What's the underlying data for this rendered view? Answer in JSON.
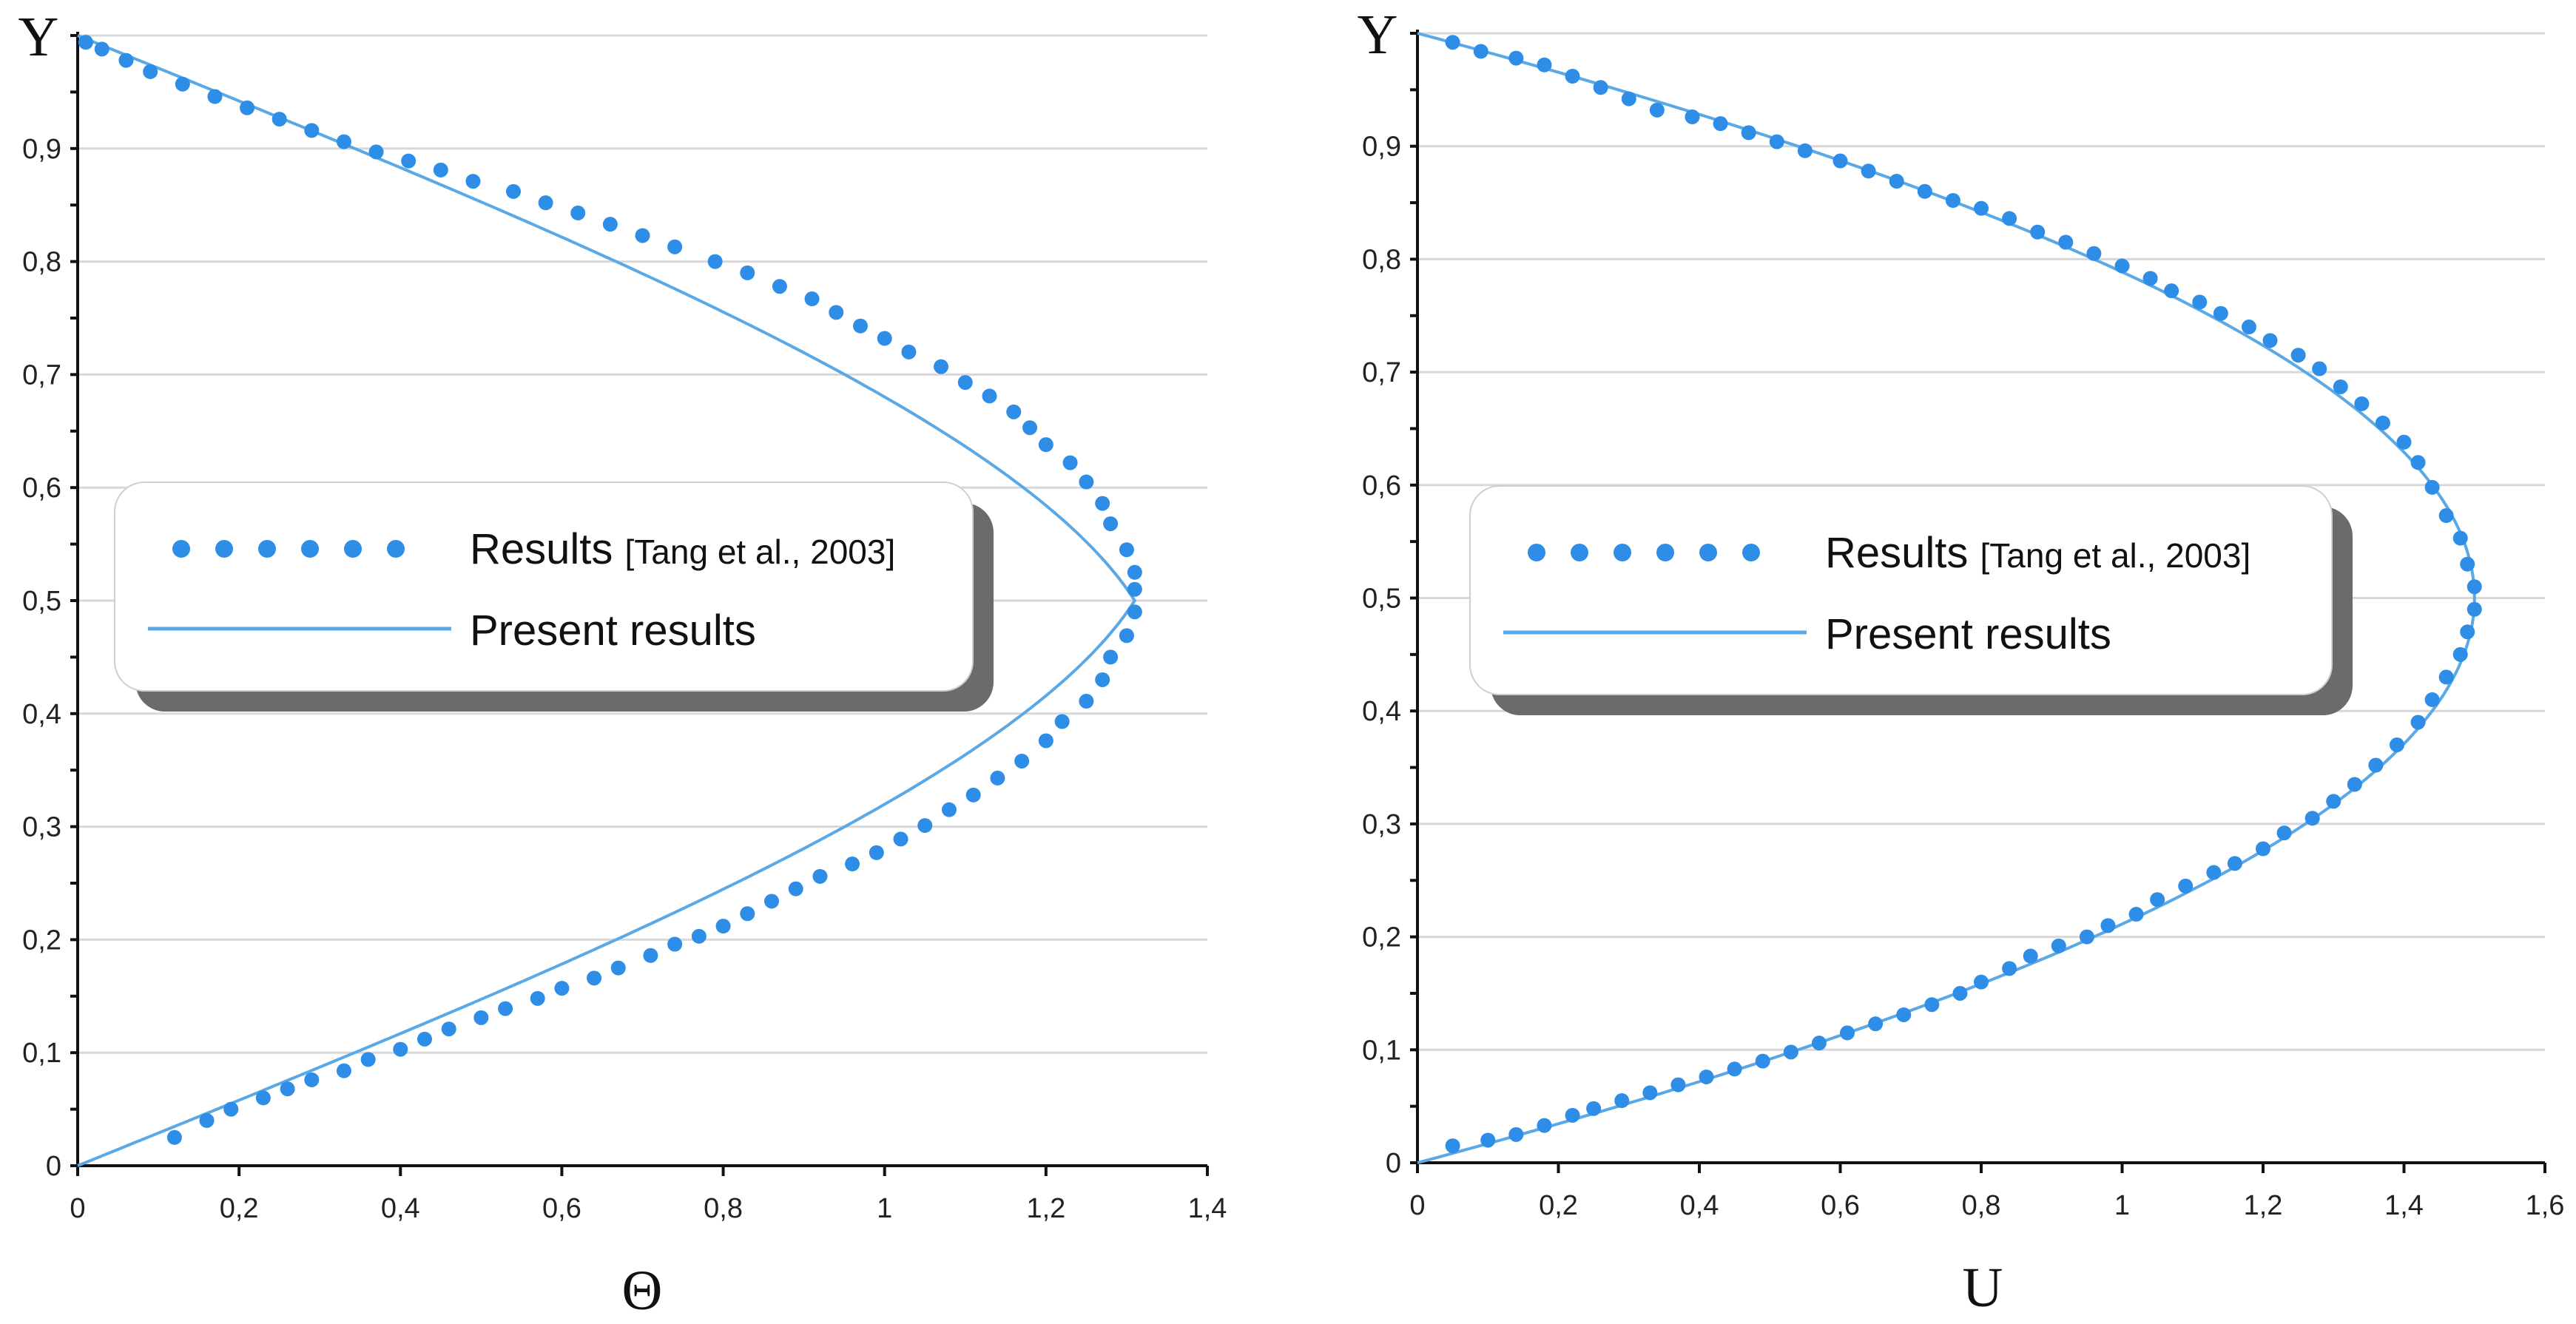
{
  "chart_data": [
    {
      "type": "line",
      "xlabel": "Θ",
      "ylabel": "Y",
      "xlim": [
        0,
        1.4
      ],
      "ylim": [
        0,
        1
      ],
      "x_ticks": [
        "0",
        "0,2",
        "0,4",
        "0,6",
        "0,8",
        "1",
        "1,2",
        "1,4"
      ],
      "y_ticks": [
        "0",
        "0,1",
        "0,2",
        "0,3",
        "0,4",
        "0,5",
        "0,6",
        "0,7",
        "0,8",
        "0,9"
      ],
      "grid": "horizontal",
      "legend_position": "middle-left",
      "line_color": "#5aa9e6",
      "marker_color": "#2e8de6",
      "peak_x": 1.31,
      "series": [
        {
          "name": "Results",
          "name_suffix": "[Tang et al., 2003]",
          "style": "dots",
          "points": [
            [
              0.12,
              0.025
            ],
            [
              0.16,
              0.04
            ],
            [
              0.19,
              0.05
            ],
            [
              0.23,
              0.06
            ],
            [
              0.26,
              0.068
            ],
            [
              0.29,
              0.076
            ],
            [
              0.33,
              0.084
            ],
            [
              0.36,
              0.094
            ],
            [
              0.4,
              0.103
            ],
            [
              0.43,
              0.112
            ],
            [
              0.46,
              0.121
            ],
            [
              0.5,
              0.131
            ],
            [
              0.53,
              0.139
            ],
            [
              0.57,
              0.148
            ],
            [
              0.6,
              0.157
            ],
            [
              0.64,
              0.166
            ],
            [
              0.67,
              0.175
            ],
            [
              0.71,
              0.186
            ],
            [
              0.74,
              0.196
            ],
            [
              0.77,
              0.203
            ],
            [
              0.8,
              0.212
            ],
            [
              0.83,
              0.223
            ],
            [
              0.86,
              0.234
            ],
            [
              0.89,
              0.245
            ],
            [
              0.92,
              0.256
            ],
            [
              0.96,
              0.267
            ],
            [
              0.99,
              0.277
            ],
            [
              1.02,
              0.289
            ],
            [
              1.05,
              0.301
            ],
            [
              1.08,
              0.315
            ],
            [
              1.11,
              0.328
            ],
            [
              1.14,
              0.343
            ],
            [
              1.17,
              0.358
            ],
            [
              1.2,
              0.376
            ],
            [
              1.22,
              0.393
            ],
            [
              1.25,
              0.411
            ],
            [
              1.27,
              0.43
            ],
            [
              1.28,
              0.45
            ],
            [
              1.3,
              0.469
            ],
            [
              1.31,
              0.49
            ],
            [
              1.31,
              0.51
            ],
            [
              1.31,
              0.525
            ],
            [
              1.3,
              0.545
            ],
            [
              1.28,
              0.568
            ],
            [
              1.27,
              0.586
            ],
            [
              1.25,
              0.605
            ],
            [
              1.23,
              0.622
            ],
            [
              1.2,
              0.638
            ],
            [
              1.18,
              0.653
            ],
            [
              1.16,
              0.667
            ],
            [
              1.13,
              0.681
            ],
            [
              1.1,
              0.693
            ],
            [
              1.07,
              0.707
            ],
            [
              1.03,
              0.72
            ],
            [
              1.0,
              0.732
            ],
            [
              0.97,
              0.743
            ],
            [
              0.94,
              0.755
            ],
            [
              0.91,
              0.767
            ],
            [
              0.87,
              0.778
            ],
            [
              0.83,
              0.79
            ],
            [
              0.79,
              0.8
            ],
            [
              0.74,
              0.813
            ],
            [
              0.7,
              0.823
            ],
            [
              0.66,
              0.833
            ],
            [
              0.62,
              0.843
            ],
            [
              0.58,
              0.852
            ],
            [
              0.54,
              0.862
            ],
            [
              0.49,
              0.871
            ],
            [
              0.45,
              0.881
            ],
            [
              0.41,
              0.889
            ],
            [
              0.37,
              0.897
            ],
            [
              0.33,
              0.906
            ],
            [
              0.29,
              0.916
            ],
            [
              0.25,
              0.926
            ],
            [
              0.21,
              0.936
            ],
            [
              0.17,
              0.946
            ],
            [
              0.13,
              0.957
            ],
            [
              0.09,
              0.968
            ],
            [
              0.06,
              0.978
            ],
            [
              0.03,
              0.988
            ],
            [
              0.01,
              0.994
            ]
          ]
        },
        {
          "name": "Present results",
          "style": "line",
          "curve": {
            "form": "symmetric profile",
            "a": 3.49,
            "b": 1.8,
            "p": 2.0,
            "y_peak": 0.5,
            "peak": 1.31
          }
        }
      ]
    },
    {
      "type": "line",
      "xlabel": "U",
      "ylabel": "Y",
      "xlim": [
        0,
        1.6
      ],
      "ylim": [
        0,
        1
      ],
      "x_ticks": [
        "0",
        "0,2",
        "0,4",
        "0,6",
        "0,8",
        "1",
        "1,2",
        "1,4",
        "1,6"
      ],
      "y_ticks": [
        "0",
        "0,1",
        "0,2",
        "0,3",
        "0,4",
        "0,5",
        "0,6",
        "0,7",
        "0,8",
        "0,9"
      ],
      "grid": "horizontal",
      "legend_position": "middle-left",
      "line_color": "#5aa9e6",
      "marker_color": "#2e8de6",
      "peak_x": 1.5,
      "series": [
        {
          "name": "Results",
          "name_suffix": "[Tang et al., 2003]",
          "style": "dots",
          "points": [
            [
              0.05,
              0.015
            ],
            [
              0.1,
              0.02
            ],
            [
              0.14,
              0.025
            ],
            [
              0.18,
              0.033
            ],
            [
              0.22,
              0.042
            ],
            [
              0.25,
              0.048
            ],
            [
              0.29,
              0.055
            ],
            [
              0.33,
              0.062
            ],
            [
              0.37,
              0.069
            ],
            [
              0.41,
              0.076
            ],
            [
              0.45,
              0.083
            ],
            [
              0.49,
              0.09
            ],
            [
              0.53,
              0.098
            ],
            [
              0.57,
              0.106
            ],
            [
              0.61,
              0.115
            ],
            [
              0.65,
              0.123
            ],
            [
              0.69,
              0.131
            ],
            [
              0.73,
              0.14
            ],
            [
              0.77,
              0.15
            ],
            [
              0.8,
              0.16
            ],
            [
              0.84,
              0.172
            ],
            [
              0.87,
              0.183
            ],
            [
              0.91,
              0.192
            ],
            [
              0.95,
              0.2
            ],
            [
              0.98,
              0.21
            ],
            [
              1.02,
              0.22
            ],
            [
              1.05,
              0.233
            ],
            [
              1.09,
              0.245
            ],
            [
              1.13,
              0.257
            ],
            [
              1.16,
              0.265
            ],
            [
              1.2,
              0.278
            ],
            [
              1.23,
              0.292
            ],
            [
              1.27,
              0.305
            ],
            [
              1.3,
              0.32
            ],
            [
              1.33,
              0.335
            ],
            [
              1.36,
              0.352
            ],
            [
              1.39,
              0.37
            ],
            [
              1.42,
              0.39
            ],
            [
              1.44,
              0.41
            ],
            [
              1.46,
              0.43
            ],
            [
              1.48,
              0.45
            ],
            [
              1.49,
              0.47
            ],
            [
              1.5,
              0.49
            ],
            [
              1.5,
              0.51
            ],
            [
              1.49,
              0.53
            ],
            [
              1.48,
              0.553
            ],
            [
              1.46,
              0.573
            ],
            [
              1.44,
              0.598
            ],
            [
              1.42,
              0.62
            ],
            [
              1.4,
              0.638
            ],
            [
              1.37,
              0.655
            ],
            [
              1.34,
              0.672
            ],
            [
              1.31,
              0.687
            ],
            [
              1.28,
              0.703
            ],
            [
              1.25,
              0.715
            ],
            [
              1.21,
              0.728
            ],
            [
              1.18,
              0.74
            ],
            [
              1.14,
              0.752
            ],
            [
              1.11,
              0.762
            ],
            [
              1.07,
              0.772
            ],
            [
              1.04,
              0.783
            ],
            [
              1.0,
              0.794
            ],
            [
              0.96,
              0.805
            ],
            [
              0.92,
              0.815
            ],
            [
              0.88,
              0.824
            ],
            [
              0.84,
              0.836
            ],
            [
              0.8,
              0.845
            ],
            [
              0.76,
              0.852
            ],
            [
              0.72,
              0.86
            ],
            [
              0.68,
              0.869
            ],
            [
              0.64,
              0.878
            ],
            [
              0.6,
              0.887
            ],
            [
              0.55,
              0.896
            ],
            [
              0.51,
              0.904
            ],
            [
              0.47,
              0.912
            ],
            [
              0.43,
              0.92
            ],
            [
              0.39,
              0.926
            ],
            [
              0.34,
              0.932
            ],
            [
              0.3,
              0.942
            ],
            [
              0.26,
              0.952
            ],
            [
              0.22,
              0.962
            ],
            [
              0.18,
              0.972
            ],
            [
              0.14,
              0.978
            ],
            [
              0.09,
              0.984
            ],
            [
              0.05,
              0.992
            ]
          ]
        },
        {
          "name": "Present results",
          "style": "line",
          "curve": {
            "form": "symmetric profile",
            "a": 6.0,
            "b": 0.0,
            "p": 2.0,
            "y_peak": 0.5,
            "peak": 1.5
          }
        }
      ]
    }
  ]
}
